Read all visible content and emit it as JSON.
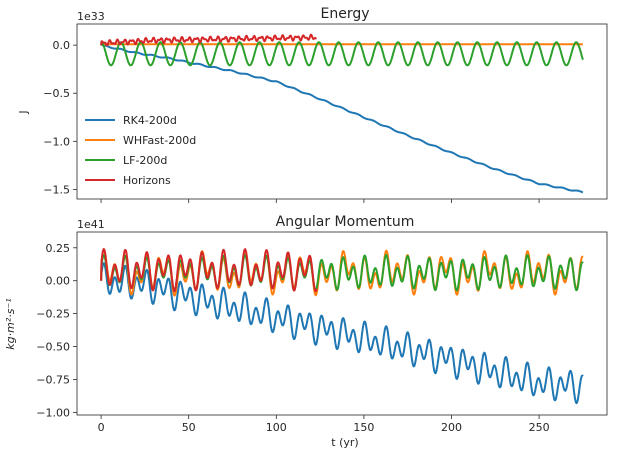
{
  "figure": {
    "shared_xlabel": "t (yr)",
    "x_tick_labels": [
      "0",
      "50",
      "100",
      "150",
      "200",
      "250"
    ]
  },
  "legend": {
    "placement": "lower-left of top panel",
    "entries": [
      {
        "label": "RK4-200d",
        "color": "#1f77b4"
      },
      {
        "label": "WHFast-200d",
        "color": "#ff7f0e"
      },
      {
        "label": "LF-200d",
        "color": "#2ca02c"
      },
      {
        "label": "Horizons",
        "color": "#d62728"
      }
    ]
  },
  "chart_data": [
    {
      "type": "line",
      "title": "Energy",
      "ylabel": "J",
      "offset_text": "1e33",
      "xlim": [
        -13.75,
        288.75
      ],
      "ylim": [
        -1.6,
        0.22
      ],
      "xticks": [
        0,
        50,
        100,
        150,
        200,
        250
      ],
      "yticks": [
        -1.5,
        -1.0,
        -0.5,
        0.0
      ],
      "ytick_labels": [
        "−1.5",
        "−1.0",
        "−0.5",
        "0.0"
      ],
      "grid": false,
      "series": [
        {
          "name": "RK4-200d",
          "color": "#1f77b4",
          "shape": "slow decline with small wiggles",
          "x": [
            0,
            10,
            20,
            30,
            40,
            50,
            75,
            100,
            125,
            150,
            175,
            200,
            225,
            250,
            275
          ],
          "y": [
            0.0,
            -0.04,
            -0.08,
            -0.11,
            -0.14,
            -0.18,
            -0.27,
            -0.38,
            -0.56,
            -0.75,
            -0.94,
            -1.12,
            -1.29,
            -1.44,
            -1.53
          ]
        },
        {
          "name": "WHFast-200d",
          "color": "#ff7f0e",
          "shape": "flat",
          "x": [
            0,
            275
          ],
          "y": [
            0.01,
            0.01
          ]
        },
        {
          "name": "LF-200d",
          "color": "#2ca02c",
          "shape": "regular oscillation, period ~11 yr",
          "x": [
            0,
            275
          ],
          "y_max": 0.03,
          "y_min": -0.21,
          "period": 11.3
        },
        {
          "name": "Horizons",
          "color": "#d62728",
          "shape": "jagged, slowly rising",
          "x": [
            0,
            30,
            60,
            90,
            123
          ],
          "y": [
            0.02,
            0.05,
            0.06,
            0.07,
            0.08
          ]
        }
      ]
    },
    {
      "type": "line",
      "title": "Angular Momentum",
      "ylabel": "kg·m²·s⁻¹",
      "offset_text": "1e41",
      "xlim": [
        -13.75,
        288.75
      ],
      "ylim": [
        -1.02,
        0.37
      ],
      "xticks": [
        0,
        50,
        100,
        150,
        200,
        250
      ],
      "yticks": [
        -1.0,
        -0.75,
        -0.5,
        -0.25,
        0.0,
        0.25
      ],
      "ytick_labels": [
        "−1.00",
        "−0.75",
        "−0.50",
        "−0.25",
        "0.00",
        "0.25"
      ],
      "grid": false,
      "series": [
        {
          "name": "RK4-200d",
          "color": "#1f77b4",
          "shape": "declining trend with oscillations",
          "x": [
            0,
            25,
            50,
            75,
            100,
            125,
            150,
            175,
            200,
            225,
            250,
            275
          ],
          "y": [
            0.0,
            -0.03,
            -0.12,
            -0.2,
            -0.28,
            -0.36,
            -0.44,
            -0.52,
            -0.6,
            -0.69,
            -0.78,
            -0.8
          ]
        },
        {
          "name": "WHFast-200d",
          "color": "#ff7f0e",
          "shape": "oscillating around 0.07, peaks up to ~0.34",
          "x": [
            0,
            275
          ],
          "y_min": -0.06,
          "y_max": 0.34
        },
        {
          "name": "LF-200d",
          "color": "#2ca02c",
          "shape": "oscillating around 0.06",
          "x": [
            0,
            275
          ],
          "y_min": -0.06,
          "y_max": 0.25
        },
        {
          "name": "Horizons",
          "color": "#d62728",
          "shape": "oscillating around 0.08",
          "x": [
            0,
            123
          ],
          "y_min": -0.06,
          "y_max": 0.28
        }
      ]
    }
  ]
}
